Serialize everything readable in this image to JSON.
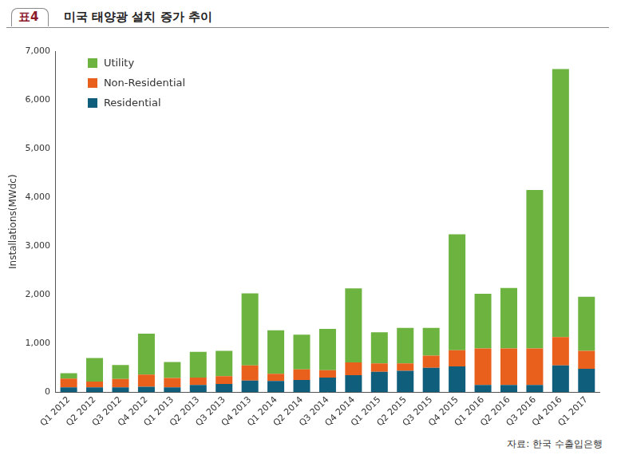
{
  "chart_data": {
    "type": "bar",
    "stacked": true,
    "figure_number": "표4",
    "title": "미국 태양광 설치 증가 추이",
    "y_label": "Installations(MWdc)",
    "source": "자료: 한국 수출입은행",
    "categories": [
      "Q1 2012",
      "Q2 2012",
      "Q3 2012",
      "Q4 2012",
      "Q1 2013",
      "Q2 2013",
      "Q3 2013",
      "Q4 2013",
      "Q1 2014",
      "Q2 2014",
      "Q3 2014",
      "Q4 2014",
      "Q1 2015",
      "Q2 2015",
      "Q3 2015",
      "Q4 2015",
      "Q1 2016",
      "Q2 2016",
      "Q3 2016",
      "Q4 2016",
      "Q1 2017"
    ],
    "series": [
      {
        "name": "Utility",
        "color": "#6cb33f",
        "values": [
          110,
          480,
          290,
          840,
          330,
          530,
          520,
          1480,
          890,
          710,
          850,
          1520,
          640,
          730,
          570,
          2380,
          1120,
          1240,
          3250,
          5500,
          1110
        ]
      },
      {
        "name": "Non-Residential",
        "color": "#e8601c",
        "values": [
          180,
          120,
          170,
          250,
          190,
          150,
          160,
          310,
          150,
          220,
          150,
          260,
          170,
          150,
          250,
          330,
          750,
          750,
          750,
          580,
          370
        ]
      },
      {
        "name": "Residential",
        "color": "#0f5e7c",
        "values": [
          100,
          100,
          100,
          110,
          100,
          150,
          170,
          240,
          230,
          250,
          300,
          350,
          420,
          440,
          500,
          530,
          150,
          150,
          150,
          550,
          480
        ]
      }
    ],
    "ylim": [
      0,
      7000
    ],
    "yticks": [
      0,
      1000,
      2000,
      3000,
      4000,
      5000,
      6000,
      7000
    ],
    "grid": false,
    "legend": "upper left"
  }
}
